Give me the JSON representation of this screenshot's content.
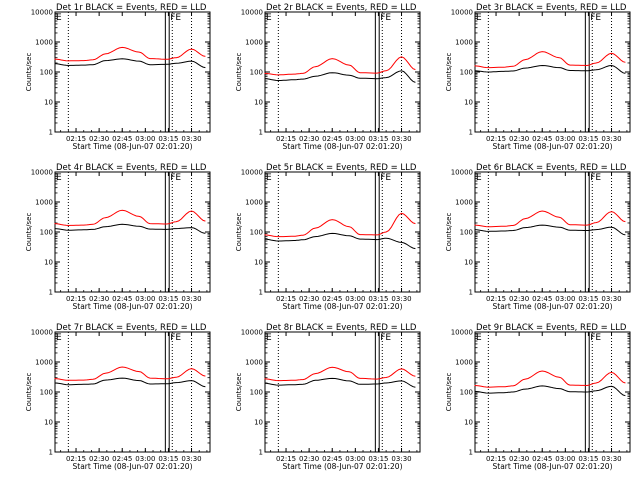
{
  "figure": {
    "ylabel": "Counts/sec",
    "xlabel": "Start Time (08-Jun-07 02:01:20)",
    "x_tick_labels": [
      "02:15",
      "02:30",
      "02:45",
      "03:00",
      "03:15",
      "03:30"
    ],
    "y_tick_labels": [
      "1",
      "10",
      "100",
      "1000",
      "10000"
    ],
    "flag_text": "FE",
    "colors": {
      "events": "#000000",
      "lld": "#ff0000",
      "axes": "#000000",
      "background": "#ffffff"
    }
  },
  "chart_data": [
    {
      "type": "line",
      "title": "Det 1r BLACK = Events, RED = LLD",
      "x": [
        "02:01",
        "02:10",
        "02:20",
        "02:26",
        "02:34",
        "02:45",
        "02:56",
        "03:03",
        "03:14",
        "03:20",
        "03:30",
        "03:39"
      ],
      "yscale": "log",
      "ylim": [
        1,
        10000
      ],
      "series": [
        {
          "name": "Events",
          "values": [
            190,
            165,
            170,
            175,
            240,
            275,
            230,
            175,
            180,
            195,
            230,
            140
          ]
        },
        {
          "name": "LLD",
          "values": [
            270,
            235,
            240,
            255,
            400,
            660,
            460,
            280,
            265,
            300,
            580,
            330
          ]
        }
      ]
    },
    {
      "type": "line",
      "title": "Det 2r BLACK = Events, RED = LLD",
      "x": [
        "02:01",
        "02:10",
        "02:20",
        "02:26",
        "02:34",
        "02:45",
        "02:56",
        "03:03",
        "03:14",
        "03:20",
        "03:30",
        "03:39"
      ],
      "yscale": "log",
      "ylim": [
        1,
        10000
      ],
      "series": [
        {
          "name": "Events",
          "values": [
            60,
            52,
            55,
            58,
            72,
            95,
            78,
            62,
            60,
            65,
            110,
            45
          ]
        },
        {
          "name": "LLD",
          "values": [
            90,
            80,
            85,
            90,
            150,
            280,
            170,
            95,
            92,
            110,
            320,
            120
          ]
        }
      ]
    },
    {
      "type": "line",
      "title": "Det 3r BLACK = Events, RED = LLD",
      "x": [
        "02:01",
        "02:10",
        "02:20",
        "02:26",
        "02:34",
        "02:45",
        "02:56",
        "03:03",
        "03:14",
        "03:20",
        "03:30",
        "03:39"
      ],
      "yscale": "log",
      "ylim": [
        1,
        10000
      ],
      "series": [
        {
          "name": "Events",
          "values": [
            110,
            100,
            105,
            108,
            135,
            165,
            140,
            112,
            110,
            118,
            165,
            90
          ]
        },
        {
          "name": "LLD",
          "values": [
            160,
            140,
            145,
            155,
            260,
            480,
            300,
            170,
            165,
            200,
            420,
            210
          ]
        }
      ]
    },
    {
      "type": "line",
      "title": "Det 4r BLACK = Events, RED = LLD",
      "x": [
        "02:01",
        "02:10",
        "02:20",
        "02:26",
        "02:34",
        "02:45",
        "02:56",
        "03:03",
        "03:14",
        "03:20",
        "03:30",
        "03:39"
      ],
      "yscale": "log",
      "ylim": [
        1,
        10000
      ],
      "series": [
        {
          "name": "Events",
          "values": [
            130,
            115,
            118,
            122,
            150,
            180,
            155,
            125,
            122,
            130,
            140,
            90
          ]
        },
        {
          "name": "LLD",
          "values": [
            190,
            165,
            170,
            180,
            300,
            530,
            330,
            190,
            185,
            220,
            500,
            230
          ]
        }
      ]
    },
    {
      "type": "line",
      "title": "Det 5r BLACK = Events, RED = LLD",
      "x": [
        "02:01",
        "02:10",
        "02:20",
        "02:26",
        "02:34",
        "02:45",
        "02:56",
        "03:03",
        "03:14",
        "03:20",
        "03:30",
        "03:39"
      ],
      "yscale": "log",
      "ylim": [
        1,
        10000
      ],
      "series": [
        {
          "name": "Events",
          "values": [
            58,
            50,
            52,
            55,
            70,
            90,
            75,
            58,
            56,
            62,
            45,
            28
          ]
        },
        {
          "name": "LLD",
          "values": [
            80,
            70,
            72,
            78,
            135,
            260,
            150,
            82,
            80,
            100,
            420,
            190
          ]
        }
      ]
    },
    {
      "type": "line",
      "title": "Det 6r BLACK = Events, RED = LLD",
      "x": [
        "02:01",
        "02:10",
        "02:20",
        "02:26",
        "02:34",
        "02:45",
        "02:56",
        "03:03",
        "03:14",
        "03:20",
        "03:30",
        "03:39"
      ],
      "yscale": "log",
      "ylim": [
        1,
        10000
      ],
      "series": [
        {
          "name": "Events",
          "values": [
            120,
            105,
            108,
            112,
            140,
            170,
            145,
            115,
            112,
            120,
            145,
            80
          ]
        },
        {
          "name": "LLD",
          "values": [
            170,
            150,
            155,
            165,
            280,
            500,
            310,
            175,
            170,
            205,
            480,
            220
          ]
        }
      ]
    },
    {
      "type": "line",
      "title": "Det 7r BLACK = Events, RED = LLD",
      "x": [
        "02:01",
        "02:10",
        "02:20",
        "02:26",
        "02:34",
        "02:45",
        "02:56",
        "03:03",
        "03:14",
        "03:20",
        "03:30",
        "03:39"
      ],
      "yscale": "log",
      "ylim": [
        1,
        10000
      ],
      "series": [
        {
          "name": "Events",
          "values": [
            200,
            175,
            180,
            185,
            250,
            290,
            240,
            185,
            188,
            205,
            240,
            150
          ]
        },
        {
          "name": "LLD",
          "values": [
            280,
            245,
            250,
            265,
            420,
            680,
            480,
            290,
            275,
            310,
            600,
            340
          ]
        }
      ]
    },
    {
      "type": "line",
      "title": "Det 8r BLACK = Events, RED = LLD",
      "x": [
        "02:01",
        "02:10",
        "02:20",
        "02:26",
        "02:34",
        "02:45",
        "02:56",
        "03:03",
        "03:14",
        "03:20",
        "03:30",
        "03:39"
      ],
      "yscale": "log",
      "ylim": [
        1,
        10000
      ],
      "series": [
        {
          "name": "Events",
          "values": [
            195,
            170,
            175,
            180,
            245,
            285,
            235,
            180,
            185,
            200,
            235,
            145
          ]
        },
        {
          "name": "LLD",
          "values": [
            275,
            240,
            245,
            260,
            410,
            670,
            470,
            285,
            270,
            305,
            590,
            335
          ]
        }
      ]
    },
    {
      "type": "line",
      "title": "Det 9r BLACK = Events, RED = LLD",
      "x": [
        "02:01",
        "02:10",
        "02:20",
        "02:26",
        "02:34",
        "02:45",
        "02:56",
        "03:03",
        "03:14",
        "03:20",
        "03:30",
        "03:39"
      ],
      "yscale": "log",
      "ylim": [
        1,
        10000
      ],
      "series": [
        {
          "name": "Events",
          "values": [
            105,
            92,
            95,
            100,
            125,
            160,
            130,
            102,
            100,
            110,
            155,
            75
          ]
        },
        {
          "name": "LLD",
          "values": [
            165,
            145,
            150,
            160,
            270,
            500,
            310,
            170,
            165,
            200,
            450,
            200
          ]
        }
      ]
    }
  ]
}
